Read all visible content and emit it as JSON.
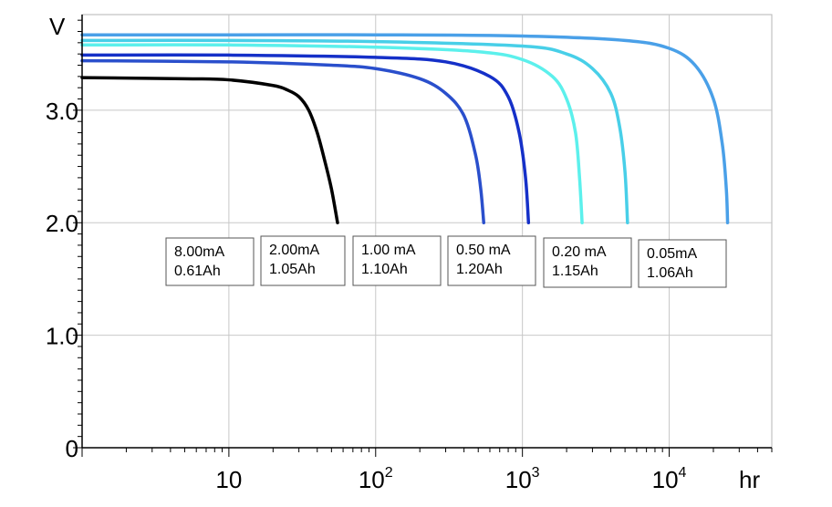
{
  "chart_data": {
    "type": "line",
    "title": "",
    "ylabel": "V",
    "xlabel": "hr",
    "x_scale": "log",
    "xlim": [
      1,
      50000
    ],
    "ylim": [
      0,
      3.85
    ],
    "grid": true,
    "y_ticks": [
      {
        "value": 0,
        "label": "0"
      },
      {
        "value": 1.0,
        "label": "1.0"
      },
      {
        "value": 2.0,
        "label": "2.0"
      },
      {
        "value": 3.0,
        "label": "3.0"
      }
    ],
    "x_ticks": [
      {
        "value": 10,
        "base": "10",
        "exp": ""
      },
      {
        "value": 100,
        "base": "10",
        "exp": "2"
      },
      {
        "value": 1000,
        "base": "10",
        "exp": "3"
      },
      {
        "value": 10000,
        "base": "10",
        "exp": "4"
      }
    ],
    "series": [
      {
        "color": "#000000",
        "labels": [
          "8.00mA",
          "0.61Ah"
        ],
        "points": [
          [
            1,
            3.29
          ],
          [
            5,
            3.28
          ],
          [
            10,
            3.27
          ],
          [
            20,
            3.22
          ],
          [
            25,
            3.18
          ],
          [
            30,
            3.12
          ],
          [
            35,
            3.0
          ],
          [
            40,
            2.8
          ],
          [
            45,
            2.55
          ],
          [
            50,
            2.3
          ],
          [
            55,
            2.0
          ]
        ]
      },
      {
        "color": "#2a4fcc",
        "labels": [
          "2.00mA",
          "1.05Ah"
        ],
        "points": [
          [
            1,
            3.44
          ],
          [
            10,
            3.43
          ],
          [
            50,
            3.4
          ],
          [
            100,
            3.37
          ],
          [
            200,
            3.28
          ],
          [
            300,
            3.15
          ],
          [
            400,
            2.95
          ],
          [
            480,
            2.6
          ],
          [
            520,
            2.3
          ],
          [
            545,
            2.0
          ]
        ]
      },
      {
        "color": "#1530c8",
        "labels": [
          "1.00 mA",
          "1.10Ah"
        ],
        "points": [
          [
            1,
            3.49
          ],
          [
            10,
            3.49
          ],
          [
            100,
            3.47
          ],
          [
            300,
            3.43
          ],
          [
            600,
            3.3
          ],
          [
            800,
            3.12
          ],
          [
            950,
            2.8
          ],
          [
            1050,
            2.4
          ],
          [
            1100,
            2.0
          ]
        ]
      },
      {
        "color": "#5cf0ec",
        "labels": [
          "0.50 mA",
          "1.20Ah"
        ],
        "points": [
          [
            1,
            3.58
          ],
          [
            10,
            3.58
          ],
          [
            100,
            3.56
          ],
          [
            500,
            3.52
          ],
          [
            1000,
            3.45
          ],
          [
            1600,
            3.3
          ],
          [
            2000,
            3.1
          ],
          [
            2300,
            2.8
          ],
          [
            2450,
            2.4
          ],
          [
            2550,
            2.0
          ]
        ]
      },
      {
        "color": "#48cfe8",
        "labels": [
          "0.20 mA",
          "1.15Ah"
        ],
        "points": [
          [
            1,
            3.62
          ],
          [
            10,
            3.62
          ],
          [
            100,
            3.61
          ],
          [
            1000,
            3.57
          ],
          [
            2000,
            3.5
          ],
          [
            3000,
            3.37
          ],
          [
            4000,
            3.15
          ],
          [
            4600,
            2.85
          ],
          [
            5000,
            2.45
          ],
          [
            5200,
            2.0
          ]
        ]
      },
      {
        "color": "#4aa0e8",
        "labels": [
          "0.05mA",
          "1.06Ah"
        ],
        "points": [
          [
            1,
            3.67
          ],
          [
            10,
            3.67
          ],
          [
            100,
            3.67
          ],
          [
            1000,
            3.66
          ],
          [
            5000,
            3.62
          ],
          [
            10000,
            3.55
          ],
          [
            15000,
            3.4
          ],
          [
            20000,
            3.1
          ],
          [
            23000,
            2.7
          ],
          [
            24500,
            2.3
          ],
          [
            25000,
            2.0
          ]
        ]
      }
    ]
  }
}
